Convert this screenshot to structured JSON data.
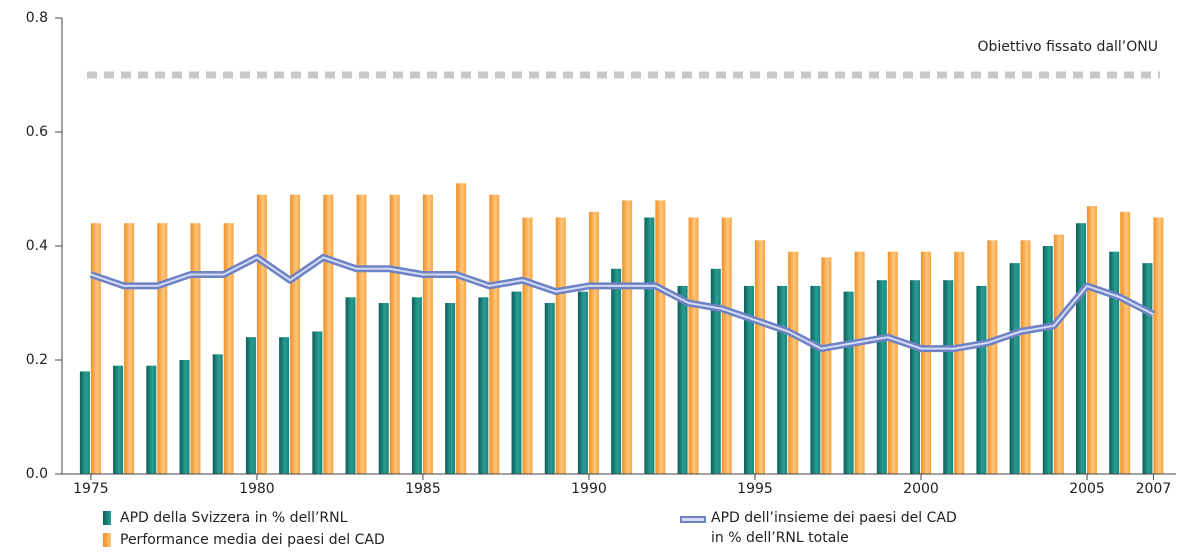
{
  "chart_data": {
    "type": "bar-line",
    "x": [
      1975,
      1976,
      1977,
      1978,
      1979,
      1980,
      1981,
      1982,
      1983,
      1984,
      1985,
      1986,
      1987,
      1988,
      1989,
      1990,
      1991,
      1992,
      1993,
      1994,
      1995,
      1996,
      1997,
      1998,
      1999,
      2000,
      2001,
      2002,
      2003,
      2004,
      2005,
      2006,
      2007
    ],
    "series": [
      {
        "name": "APD della Svizzera in % dell’RNL",
        "type": "bar",
        "color": "#16857d",
        "values": [
          0.18,
          0.19,
          0.19,
          0.2,
          0.21,
          0.24,
          0.24,
          0.25,
          0.31,
          0.3,
          0.31,
          0.3,
          0.31,
          0.32,
          0.3,
          0.32,
          0.36,
          0.45,
          0.33,
          0.36,
          0.33,
          0.33,
          0.33,
          0.32,
          0.34,
          0.34,
          0.34,
          0.33,
          0.37,
          0.4,
          0.44,
          0.39,
          0.37
        ]
      },
      {
        "name": "Performance media dei paesi del CAD",
        "type": "bar",
        "color": "#f7a640",
        "values": [
          0.44,
          0.44,
          0.44,
          0.44,
          0.44,
          0.49,
          0.49,
          0.49,
          0.49,
          0.49,
          0.49,
          0.51,
          0.49,
          0.45,
          0.45,
          0.46,
          0.48,
          0.48,
          0.45,
          0.45,
          0.41,
          0.39,
          0.38,
          0.39,
          0.39,
          0.39,
          0.39,
          0.41,
          0.41,
          0.42,
          0.47,
          0.46,
          0.45
        ]
      },
      {
        "name": "APD dell’insieme dei paesi del CAD\nin % dell’RNL totale",
        "type": "line",
        "color": "#6f83c4",
        "values": [
          0.35,
          0.33,
          0.33,
          0.35,
          0.35,
          0.38,
          0.34,
          0.38,
          0.36,
          0.36,
          0.35,
          0.35,
          0.33,
          0.34,
          0.32,
          0.33,
          0.33,
          0.33,
          0.3,
          0.29,
          0.27,
          0.25,
          0.22,
          0.23,
          0.24,
          0.22,
          0.22,
          0.23,
          0.25,
          0.26,
          0.33,
          0.31,
          0.28
        ]
      }
    ],
    "target": {
      "value": 0.7,
      "label": "Obiettivo fissato dall’ONU",
      "color": "#c8c8c8"
    },
    "xlim": [
      1974.13,
      2007.8
    ],
    "xticks": [
      1975,
      1980,
      1985,
      1990,
      1995,
      2000,
      2005,
      2007
    ],
    "ylim": [
      0,
      0.8
    ],
    "yticks": [
      {
        "value": 0,
        "label": "0.0"
      },
      0.2,
      0.4,
      0.6,
      0.8
    ]
  }
}
